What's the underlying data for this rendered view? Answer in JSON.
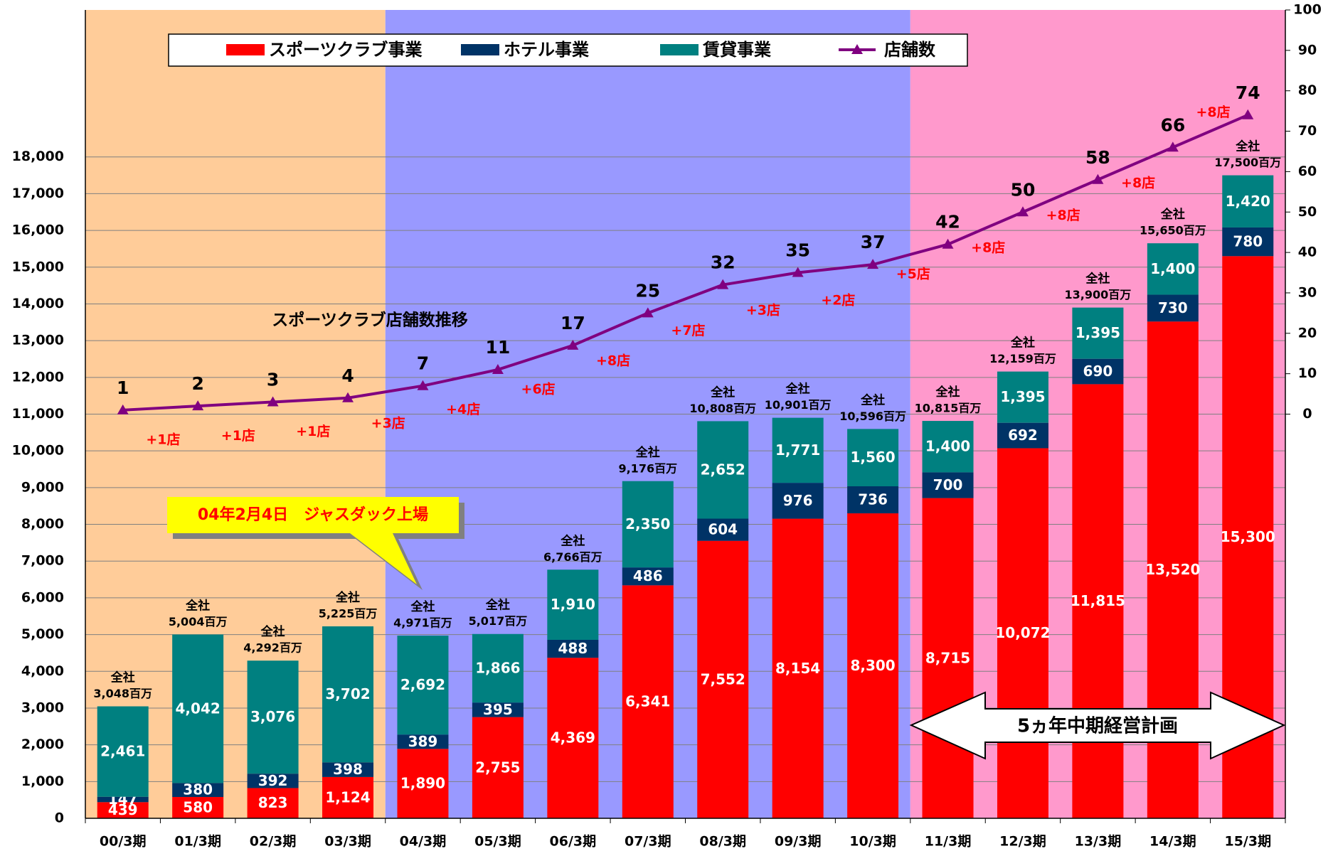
{
  "chart_data": {
    "type": "bar",
    "stacked": true,
    "categories": [
      "00/3期",
      "01/3期",
      "02/3期",
      "03/3期",
      "04/3期",
      "05/3期",
      "06/3期",
      "07/3期",
      "08/3期",
      "09/3期",
      "10/3期",
      "11/3期",
      "12/3期",
      "13/3期",
      "14/3期",
      "15/3期"
    ],
    "ylim": [
      0,
      22000
    ],
    "yticks": [
      0,
      {
        "value": 1000,
        "label": "1,000"
      },
      {
        "value": 2000,
        "label": "2,000"
      },
      {
        "value": 3000,
        "label": "3,000"
      },
      {
        "value": 4000,
        "label": "4,000"
      },
      {
        "value": 5000,
        "label": "5,000"
      },
      {
        "value": 6000,
        "label": "6,000"
      },
      {
        "value": 7000,
        "label": "7,000"
      },
      {
        "value": 8000,
        "label": "8,000"
      },
      {
        "value": 9000,
        "label": "9,000"
      },
      {
        "value": 10000,
        "label": "10,000"
      },
      {
        "value": 11000,
        "label": "11,000"
      },
      {
        "value": 12000,
        "label": "12,000"
      },
      {
        "value": 13000,
        "label": "13,000"
      },
      {
        "value": 14000,
        "label": "14,000"
      },
      {
        "value": 15000,
        "label": "15,000"
      },
      {
        "value": 16000,
        "label": "16,000"
      },
      {
        "value": 17000,
        "label": "17,000"
      },
      {
        "value": 18000,
        "label": "18,000"
      }
    ],
    "y2lim": [
      -100,
      100
    ],
    "y2ticks": [
      0,
      10,
      20,
      30,
      40,
      50,
      60,
      70,
      80,
      90,
      100
    ],
    "grid": true,
    "series": [
      {
        "name": "スポーツクラブ事業",
        "color": "#ff0000",
        "values": [
          439,
          580,
          823,
          1124,
          1890,
          2755,
          4369,
          6341,
          7552,
          8154,
          8300,
          8715,
          10072,
          11815,
          13520,
          15300
        ],
        "value_labels": [
          "439",
          "580",
          "823",
          "1,124",
          "1,890",
          "2,755",
          "4,369",
          "6,341",
          "7,552",
          "8,154",
          "8,300",
          "8,715",
          "10,072",
          "11,815",
          "13,520",
          "15,300"
        ]
      },
      {
        "name": "ホテル事業",
        "color": "#003366",
        "values": [
          147,
          380,
          392,
          398,
          389,
          395,
          488,
          486,
          604,
          976,
          736,
          700,
          692,
          690,
          730,
          780
        ]
      },
      {
        "name": "賃貸事業",
        "color": "#008080",
        "values": [
          2461,
          4042,
          3076,
          3702,
          2692,
          1866,
          1910,
          2350,
          2652,
          1771,
          1560,
          1400,
          1395,
          1395,
          1400,
          1420
        ],
        "value_labels": [
          "2,461",
          "4,042",
          "3,076",
          "3,702",
          "2,692",
          "1,866",
          "1,910",
          "2,350",
          "2,652",
          "1,771",
          "1,560",
          "1,400",
          "1,395",
          "1,395",
          "1,400",
          "1,420"
        ]
      },
      {
        "name": "店舗数",
        "type": "line",
        "axis": "y2",
        "color": "#800080",
        "values": [
          1,
          2,
          3,
          4,
          7,
          11,
          17,
          25,
          32,
          35,
          37,
          42,
          50,
          58,
          66,
          74
        ]
      }
    ],
    "total_caption": "全社",
    "totals": [
      3048,
      5004,
      4292,
      5225,
      4971,
      5017,
      6766,
      9176,
      10808,
      10901,
      10596,
      10815,
      12159,
      13900,
      15650,
      17500
    ],
    "total_labels": [
      "3,048百万",
      "5,004百万",
      "4,292百万",
      "5,225百万",
      "4,971百万",
      "5,017百万",
      "6,766百万",
      "9,176百万",
      "10,808百万",
      "10,901百万",
      "10,596百万",
      "10,815百万",
      "12,159百万",
      "13,900百万",
      "15,650百万",
      "17,500百万"
    ],
    "increment_labels": [
      "+1店",
      "+1店",
      "+1店",
      "+3店",
      "+4店",
      "+6店",
      "+8店",
      "+7店",
      "+3店",
      "+2店",
      "+5店",
      "+8店",
      "+8店",
      "+8店",
      "+8店"
    ],
    "regions": [
      {
        "start": "00/3期",
        "end": "03/3期",
        "color": "#ffcc99"
      },
      {
        "start": "04/3期",
        "end": "10/3期",
        "color": "#9999ff"
      },
      {
        "start": "11/3期",
        "end": "15/3期",
        "color": "#ff99cc"
      }
    ],
    "annotations": {
      "line_title": "スポーツクラブ店舗数推移",
      "callout": "04年2月4日　ジャスダック上場",
      "plan": "5ヵ年中期経営計画"
    }
  }
}
